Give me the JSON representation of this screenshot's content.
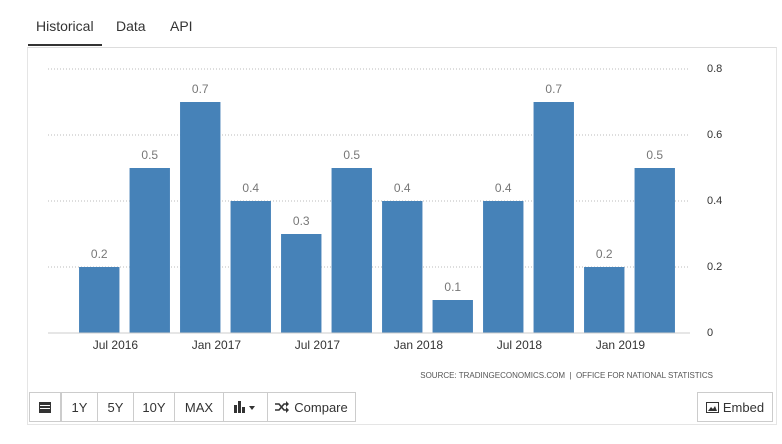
{
  "tabs": [
    "Historical",
    "Data",
    "API"
  ],
  "chart_data": {
    "type": "bar",
    "categories": [
      "Jul 2016",
      null,
      "Jan 2017",
      null,
      "Jul 2017",
      null,
      "Jan 2018",
      null,
      "Jul 2018",
      null,
      "Jan 2019",
      null
    ],
    "values": [
      0.2,
      0.5,
      0.7,
      0.4,
      0.3,
      0.5,
      0.4,
      0.1,
      0.4,
      0.7,
      0.2,
      0.5
    ],
    "color": "#4682b8",
    "ylim": [
      0,
      0.8
    ],
    "yticks": [
      0,
      0.2,
      0.4,
      0.6,
      0.8
    ],
    "grid": true,
    "source": "SOURCE: TRADINGECONOMICS.COM  |  OFFICE FOR NATIONAL STATISTICS"
  },
  "buttons": [
    "1Y",
    "5Y",
    "10Y",
    "MAX",
    "Compare"
  ],
  "embed": "Embed"
}
